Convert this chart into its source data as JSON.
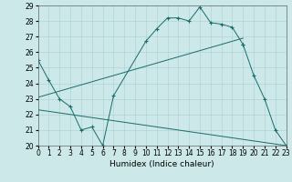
{
  "xlabel": "Humidex (Indice chaleur)",
  "xlim": [
    0,
    23
  ],
  "ylim": [
    20,
    29
  ],
  "yticks": [
    20,
    21,
    22,
    23,
    24,
    25,
    26,
    27,
    28,
    29
  ],
  "xticks": [
    0,
    1,
    2,
    3,
    4,
    5,
    6,
    7,
    8,
    9,
    10,
    11,
    12,
    13,
    14,
    15,
    16,
    17,
    18,
    19,
    20,
    21,
    22,
    23
  ],
  "bg_color": "#cce8e8",
  "line_color": "#1a6b6b",
  "grid_color": "#aad0d0",
  "lines": [
    {
      "x": [
        0,
        1,
        2,
        3,
        4,
        5,
        6,
        7,
        10,
        11,
        12,
        13,
        14,
        15,
        16,
        17,
        18,
        19
      ],
      "y": [
        25.5,
        24.2,
        23.0,
        22.5,
        21.0,
        21.2,
        20.0,
        23.2,
        26.7,
        27.5,
        28.2,
        28.2,
        28.0,
        28.9,
        27.9,
        27.8,
        27.6,
        26.5
      ],
      "has_markers": true
    },
    {
      "x": [
        19,
        20,
        21,
        22,
        23
      ],
      "y": [
        26.5,
        24.5,
        23.0,
        21.0,
        20.0
      ],
      "has_markers": true
    },
    {
      "x": [
        0,
        19
      ],
      "y": [
        23.1,
        26.9
      ],
      "has_markers": false
    },
    {
      "x": [
        0,
        23
      ],
      "y": [
        22.3,
        20.0
      ],
      "has_markers": false
    }
  ],
  "font_size": 6,
  "tick_font_size": 5.5,
  "xlabel_font_size": 6.5
}
